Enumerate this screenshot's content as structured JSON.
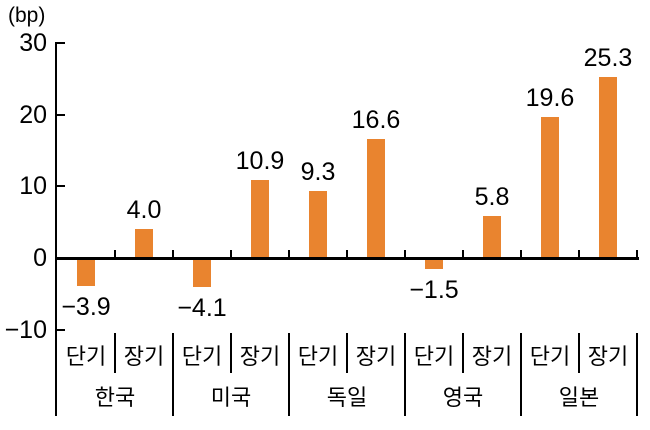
{
  "chart_data": {
    "type": "bar",
    "title": "",
    "unit_label": "(bp)",
    "categories": [
      "한국",
      "미국",
      "독일",
      "영국",
      "일본"
    ],
    "series": [
      {
        "name": "단기",
        "values": [
          -3.9,
          -4.1,
          9.3,
          -1.5,
          19.6
        ]
      },
      {
        "name": "장기",
        "values": [
          4.0,
          10.9,
          16.6,
          5.8,
          25.3
        ]
      }
    ],
    "value_labels": [
      "-3.9",
      "4.0",
      "-4.1",
      "10.9",
      "9.3",
      "16.6",
      "-1.5",
      "5.8",
      "19.6",
      "25.3"
    ],
    "ylabel": "",
    "xlabel": "",
    "ylim": [
      -10,
      30
    ],
    "yticks": [
      30,
      20,
      10,
      0,
      -10
    ],
    "ytick_labels": [
      "30",
      "20",
      "10",
      "0",
      "-10"
    ],
    "grid": false,
    "legend_position": "none",
    "bar_color": "#E9842F",
    "axis_color": "#000000",
    "text_color": "#000000",
    "minus_glyph": "−"
  }
}
